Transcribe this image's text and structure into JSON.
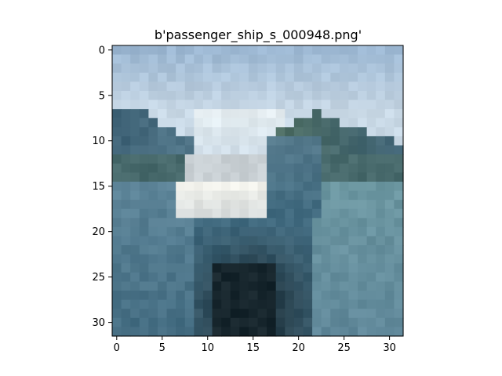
{
  "title": "b'passenger_ship_s_000948.png'",
  "image": {
    "description_icon": "photo-icon",
    "grid_size": 32,
    "palette": {
      "sky_top": "#9cb7d2",
      "sky_low": "#c9d9e6",
      "haze": "#e6eef2",
      "hill_dark": "#3f6377",
      "hill_mid": "#557a8c",
      "green_hill": "#4d6d63",
      "water": "#5d8498",
      "water_dark": "#426b80",
      "hull_white": "#f0f0ea",
      "hull_grey": "#c9d0d4",
      "deck_shadow": "#17262d",
      "teal_right": "#6c97a1"
    }
  },
  "axes": {
    "x_ticks": [
      "0",
      "5",
      "10",
      "15",
      "20",
      "25",
      "30"
    ],
    "y_ticks": [
      "0",
      "5",
      "10",
      "15",
      "20",
      "25",
      "30"
    ]
  }
}
